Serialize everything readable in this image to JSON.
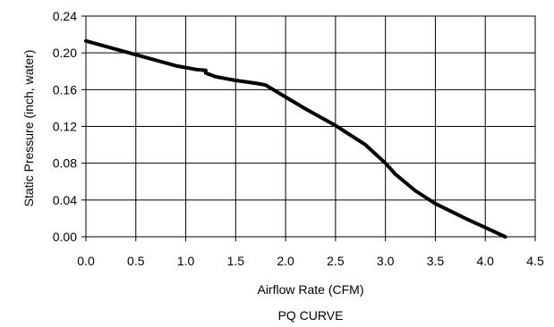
{
  "chart_data": {
    "type": "line",
    "title": "PQ CURVE",
    "xlabel": "Airflow Rate (CFM)",
    "ylabel": "Static Pressure (inch, water)",
    "xlim": [
      0,
      4.5
    ],
    "ylim": [
      0,
      0.24
    ],
    "xticks": [
      "0.0",
      "0.5",
      "1.0",
      "1.5",
      "2.0",
      "2.5",
      "3.0",
      "3.5",
      "4.0",
      "4.5"
    ],
    "yticks": [
      "0.00",
      "0.04",
      "0.08",
      "0.12",
      "0.16",
      "0.20",
      "0.24"
    ],
    "grid": true,
    "legend": "none",
    "line_color": "#000000",
    "series": [
      {
        "x": [
          0.0,
          0.3,
          0.6,
          0.9,
          1.1,
          1.2,
          1.2,
          1.3,
          1.5,
          1.7,
          1.8,
          2.0,
          2.2,
          2.5,
          2.8,
          3.0,
          3.1,
          3.3,
          3.5,
          3.8,
          4.0,
          4.2
        ],
        "y": [
          0.213,
          0.204,
          0.195,
          0.186,
          0.182,
          0.181,
          0.178,
          0.174,
          0.17,
          0.167,
          0.165,
          0.152,
          0.139,
          0.121,
          0.1,
          0.08,
          0.068,
          0.05,
          0.036,
          0.02,
          0.01,
          0.0
        ]
      }
    ]
  }
}
